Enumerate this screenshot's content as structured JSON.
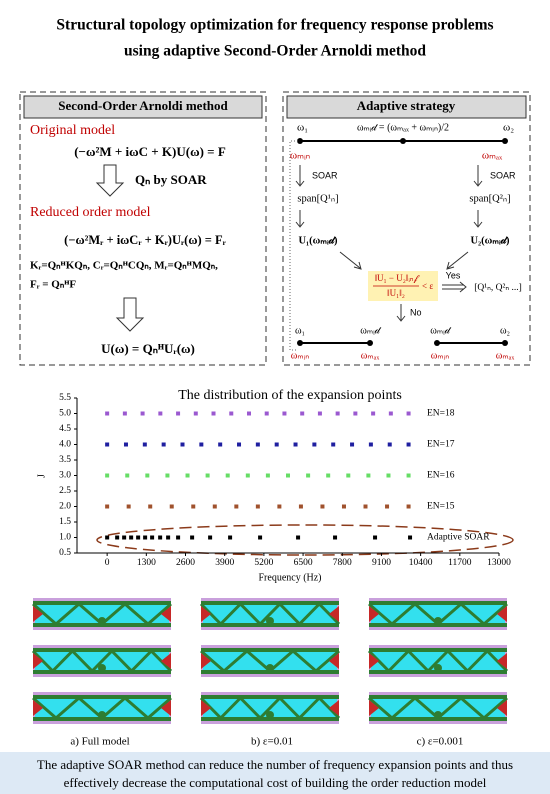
{
  "title": [
    "Structural topology optimization for frequency response problems",
    "using adaptive Second-Order Arnoldi method"
  ],
  "left_panel": {
    "header": "Second-Order Arnoldi method",
    "original_label": "Original model",
    "original_eq": "(−ω²M + iωC + K)U(ω) = F",
    "step": "Qₙ by SOAR",
    "reduced_label": "Reduced order model",
    "reduced_eq": "(−ω²Mᵣ + iωCᵣ + Kᵣ)Uᵣ(ω) = Fᵣ",
    "matrices": "Kᵣ=QₙᴴKQₙ, Cᵣ=QₙᴴCQₙ, Mᵣ=QₙᴴMQₙ,",
    "force": "Fᵣ = QₙᴴF",
    "recovery": "U(ω) = QₙᴴUᵣ(ω)"
  },
  "right_panel": {
    "header": "Adaptive strategy",
    "w1": "ω₁",
    "wmid_eq": "ωₘᵢ𝒹 = (ωₘₐₓ + ωₘᵢₙ)/2",
    "w2": "ω₂",
    "wmin": "ωₘᵢₙ",
    "wmax": "ωₘₐₓ",
    "soar": "SOAR",
    "span1": "span[Q¹ₙ]",
    "span2": "span[Q²ₙ]",
    "u1": "U₁(ωₘᵢ𝒹)",
    "u2": "U₂(ωₘᵢ𝒹)",
    "crit_num": "‖U₁ − U₂‖ᵢₙ𝒻",
    "crit_den": "‖U₁‖₂",
    "crit_rel": "< ε",
    "yes": "Yes",
    "result": "[Q¹ₙ, Q²ₙ ...]",
    "no": "No",
    "wmid": "ωₘᵢ𝒹"
  },
  "chart_data": {
    "type": "scatter",
    "title": "The distribution of the expansion points",
    "xlabel": "Frequency (Hz)",
    "ylabel": "J",
    "xlim": [
      -1000,
      13000
    ],
    "xticks": [
      0,
      1300,
      2600,
      3900,
      5200,
      6500,
      7800,
      9100,
      10400,
      11700,
      13000
    ],
    "ylim": [
      0.5,
      5.5
    ],
    "yticks": [
      0.5,
      {
        "value": 1,
        "label": "1.0"
      },
      1.5,
      {
        "value": 2,
        "label": "2.0"
      },
      2.5,
      {
        "value": 3,
        "label": "3.0"
      },
      3.5,
      {
        "value": 4,
        "label": "4.0"
      },
      4.5,
      {
        "value": 5,
        "label": "5.0"
      },
      5.5
    ],
    "series": [
      {
        "name": "EN=18",
        "color": "#9b59d0",
        "x": [
          0,
          588,
          1176,
          1765,
          2353,
          2941,
          3529,
          4118,
          4706,
          5294,
          5882,
          6471,
          7059,
          7647,
          8235,
          8824,
          9412,
          10000
        ],
        "values": [
          5,
          5,
          5,
          5,
          5,
          5,
          5,
          5,
          5,
          5,
          5,
          5,
          5,
          5,
          5,
          5,
          5,
          5
        ]
      },
      {
        "name": "EN=17",
        "color": "#1f1fa0",
        "x": [
          0,
          625,
          1250,
          1875,
          2500,
          3125,
          3750,
          4375,
          5000,
          5625,
          6250,
          6875,
          7500,
          8125,
          8750,
          9375,
          10000
        ],
        "values": [
          4,
          4,
          4,
          4,
          4,
          4,
          4,
          4,
          4,
          4,
          4,
          4,
          4,
          4,
          4,
          4,
          4
        ]
      },
      {
        "name": "EN=16",
        "color": "#66dd66",
        "x": [
          0,
          667,
          1333,
          2000,
          2667,
          3333,
          4000,
          4667,
          5333,
          6000,
          6667,
          7333,
          8000,
          8667,
          9333,
          10000
        ],
        "values": [
          3,
          3,
          3,
          3,
          3,
          3,
          3,
          3,
          3,
          3,
          3,
          3,
          3,
          3,
          3,
          3
        ]
      },
      {
        "name": "EN=15",
        "color": "#a0522d",
        "x": [
          0,
          714,
          1429,
          2143,
          2857,
          3571,
          4286,
          5000,
          5714,
          6429,
          7143,
          7857,
          8571,
          9286,
          10000
        ],
        "values": [
          2,
          2,
          2,
          2,
          2,
          2,
          2,
          2,
          2,
          2,
          2,
          2,
          2,
          2,
          2
        ]
      },
      {
        "name": "Adaptive SOAR",
        "color": "#000000",
        "x": [
          0,
          332,
          564,
          796,
          1028,
          1260,
          1492,
          1758,
          2023,
          2354,
          2819,
          3416,
          4079,
          5074,
          6334,
          7561,
          8888,
          10049
        ],
        "values": [
          1,
          1,
          1,
          1,
          1,
          1,
          1,
          1,
          1,
          1,
          1,
          1,
          1,
          1,
          1,
          1,
          1,
          1
        ]
      }
    ]
  },
  "results": {
    "captions": [
      "a) Full model",
      "b) ε=0.01",
      "c) ε=0.001"
    ]
  },
  "footer": [
    "The adaptive SOAR method can reduce the number of frequency expansion points and thus",
    "effectively decrease the computational cost of building the order reduction model"
  ]
}
